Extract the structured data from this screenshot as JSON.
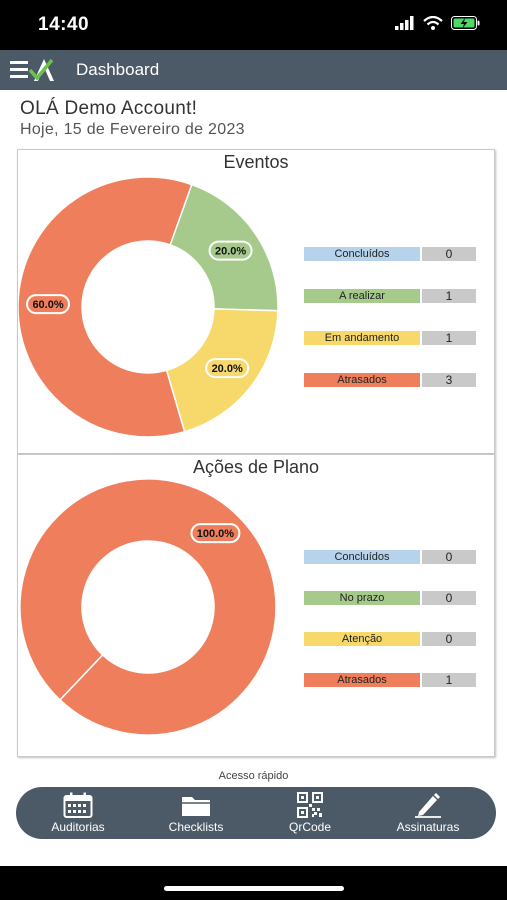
{
  "status_bar": {
    "time": "14:40"
  },
  "header": {
    "title": "Dashboard"
  },
  "greeting": "OLÁ Demo Account!",
  "date_line": "Hoje, 15 de Fevereiro de 2023",
  "colors": {
    "concluidos": "#b7d3ec",
    "realizar": "#a6c98c",
    "andamento": "#f6d86b",
    "atrasados": "#ef7f5c",
    "header": "#4c5a68"
  },
  "eventos": {
    "title": "Eventos",
    "slice_labels": {
      "atrasados": "60.0%",
      "realizar": "20.0%",
      "andamento": "20.0%"
    },
    "legend": [
      {
        "label": "Concluídos",
        "value": "0"
      },
      {
        "label": "A realizar",
        "value": "1"
      },
      {
        "label": "Em andamento",
        "value": "1"
      },
      {
        "label": "Atrasados",
        "value": "3"
      }
    ]
  },
  "acoes": {
    "title": "Ações de Plano",
    "slice_labels": {
      "atrasados": "100.0%"
    },
    "legend": [
      {
        "label": "Concluídos",
        "value": "0"
      },
      {
        "label": "No prazo",
        "value": "0"
      },
      {
        "label": "Atenção",
        "value": "0"
      },
      {
        "label": "Atrasados",
        "value": "1"
      }
    ]
  },
  "chart_data": [
    {
      "type": "pie",
      "title": "Eventos",
      "categories": [
        "Concluídos",
        "A realizar",
        "Em andamento",
        "Atrasados"
      ],
      "values": [
        0,
        1,
        1,
        3
      ],
      "percent_labels": [
        "",
        "20.0%",
        "20.0%",
        "60.0%"
      ],
      "donut": true
    },
    {
      "type": "pie",
      "title": "Ações de Plano",
      "categories": [
        "Concluídos",
        "No prazo",
        "Atenção",
        "Atrasados"
      ],
      "values": [
        0,
        0,
        0,
        1
      ],
      "percent_labels": [
        "",
        "",
        "",
        "100.0%"
      ],
      "donut": true
    }
  ],
  "quick_access": {
    "label": "Acesso rápido",
    "items": [
      {
        "label": "Auditorias",
        "icon": "calendar-icon"
      },
      {
        "label": "Checklists",
        "icon": "folder-icon"
      },
      {
        "label": "QrCode",
        "icon": "qrcode-icon"
      },
      {
        "label": "Assinaturas",
        "icon": "pen-icon"
      }
    ]
  }
}
